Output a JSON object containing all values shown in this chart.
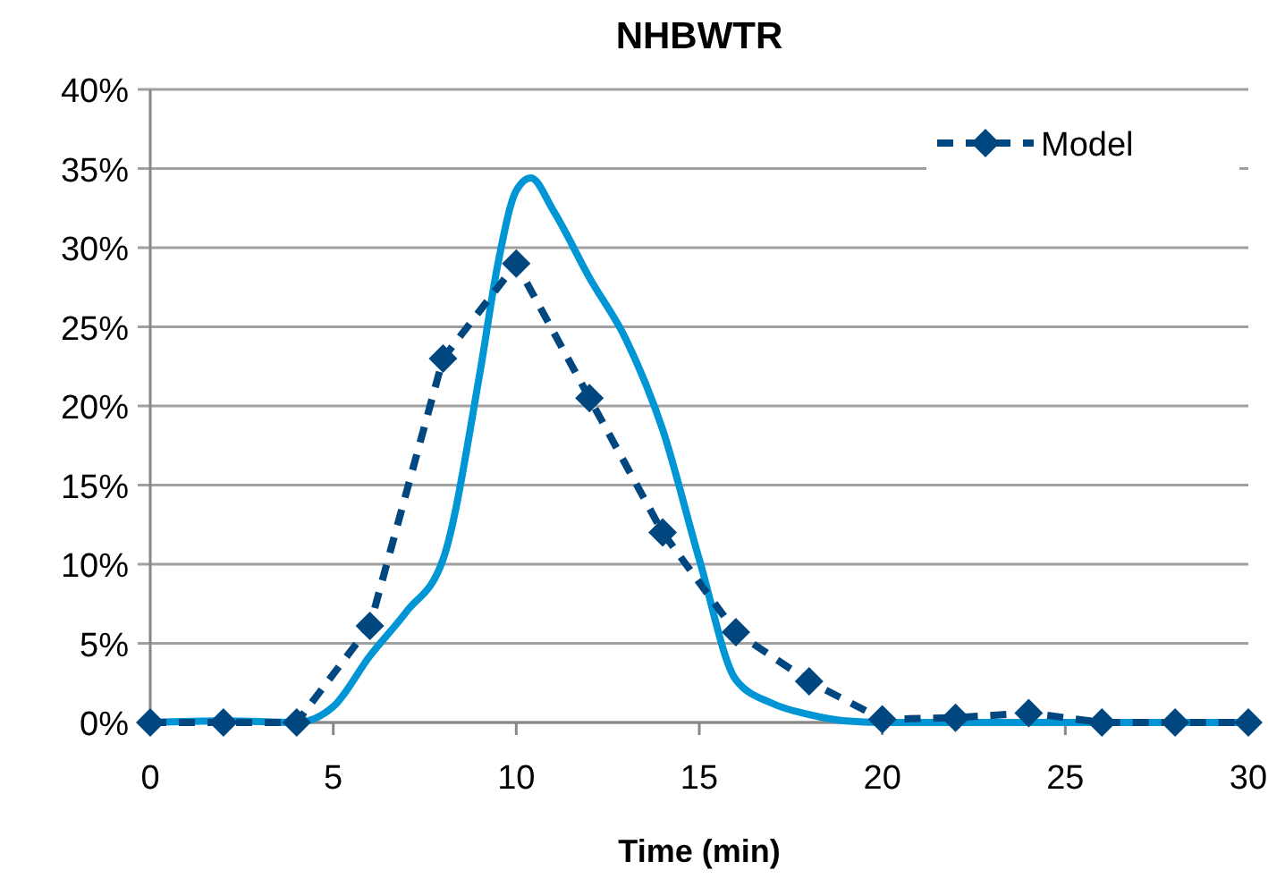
{
  "chart_data": {
    "type": "line",
    "title": "NHBWTR",
    "xlabel": "Time (min)",
    "xlim": [
      0,
      30
    ],
    "xticks": [
      0,
      5,
      10,
      15,
      20,
      25,
      30
    ],
    "ylim": [
      0,
      40
    ],
    "yticks": [
      {
        "value": 0,
        "label": "0%"
      },
      {
        "value": 5,
        "label": "5%"
      },
      {
        "value": 10,
        "label": "10%"
      },
      {
        "value": 15,
        "label": "15%"
      },
      {
        "value": 20,
        "label": "20%"
      },
      {
        "value": 25,
        "label": "25%"
      },
      {
        "value": 30,
        "label": "30%"
      },
      {
        "value": 35,
        "label": "35%"
      },
      {
        "value": 40,
        "label": "40%"
      }
    ],
    "grid": "y",
    "legend": "top right",
    "series": [
      {
        "color": "#0096d6",
        "marker": "none",
        "line_style": "solid",
        "x": [
          0,
          2,
          4,
          5,
          6,
          7,
          8,
          9,
          9.5,
          10,
          10.4,
          11,
          12,
          13,
          14,
          15,
          16,
          17,
          18,
          19,
          20,
          25,
          30
        ],
        "values": [
          0,
          0.1,
          0,
          1,
          4.2,
          7,
          10.3,
          22,
          29,
          33.6,
          34.4,
          32.4,
          28.1,
          24.2,
          18.5,
          10.3,
          2.7,
          1.2,
          0.5,
          0.1,
          0,
          0,
          0
        ]
      },
      {
        "name": "Model",
        "color": "#00467f",
        "marker": "diamond",
        "line_style": "dashed",
        "x": [
          0,
          2,
          4,
          6,
          8,
          10,
          12,
          14,
          16,
          18,
          20,
          22,
          24,
          26,
          28,
          30
        ],
        "values": [
          0,
          0,
          0,
          6.1,
          23,
          29,
          20.5,
          12,
          5.7,
          2.6,
          0.2,
          0.3,
          0.6,
          0,
          0,
          0
        ]
      }
    ]
  }
}
